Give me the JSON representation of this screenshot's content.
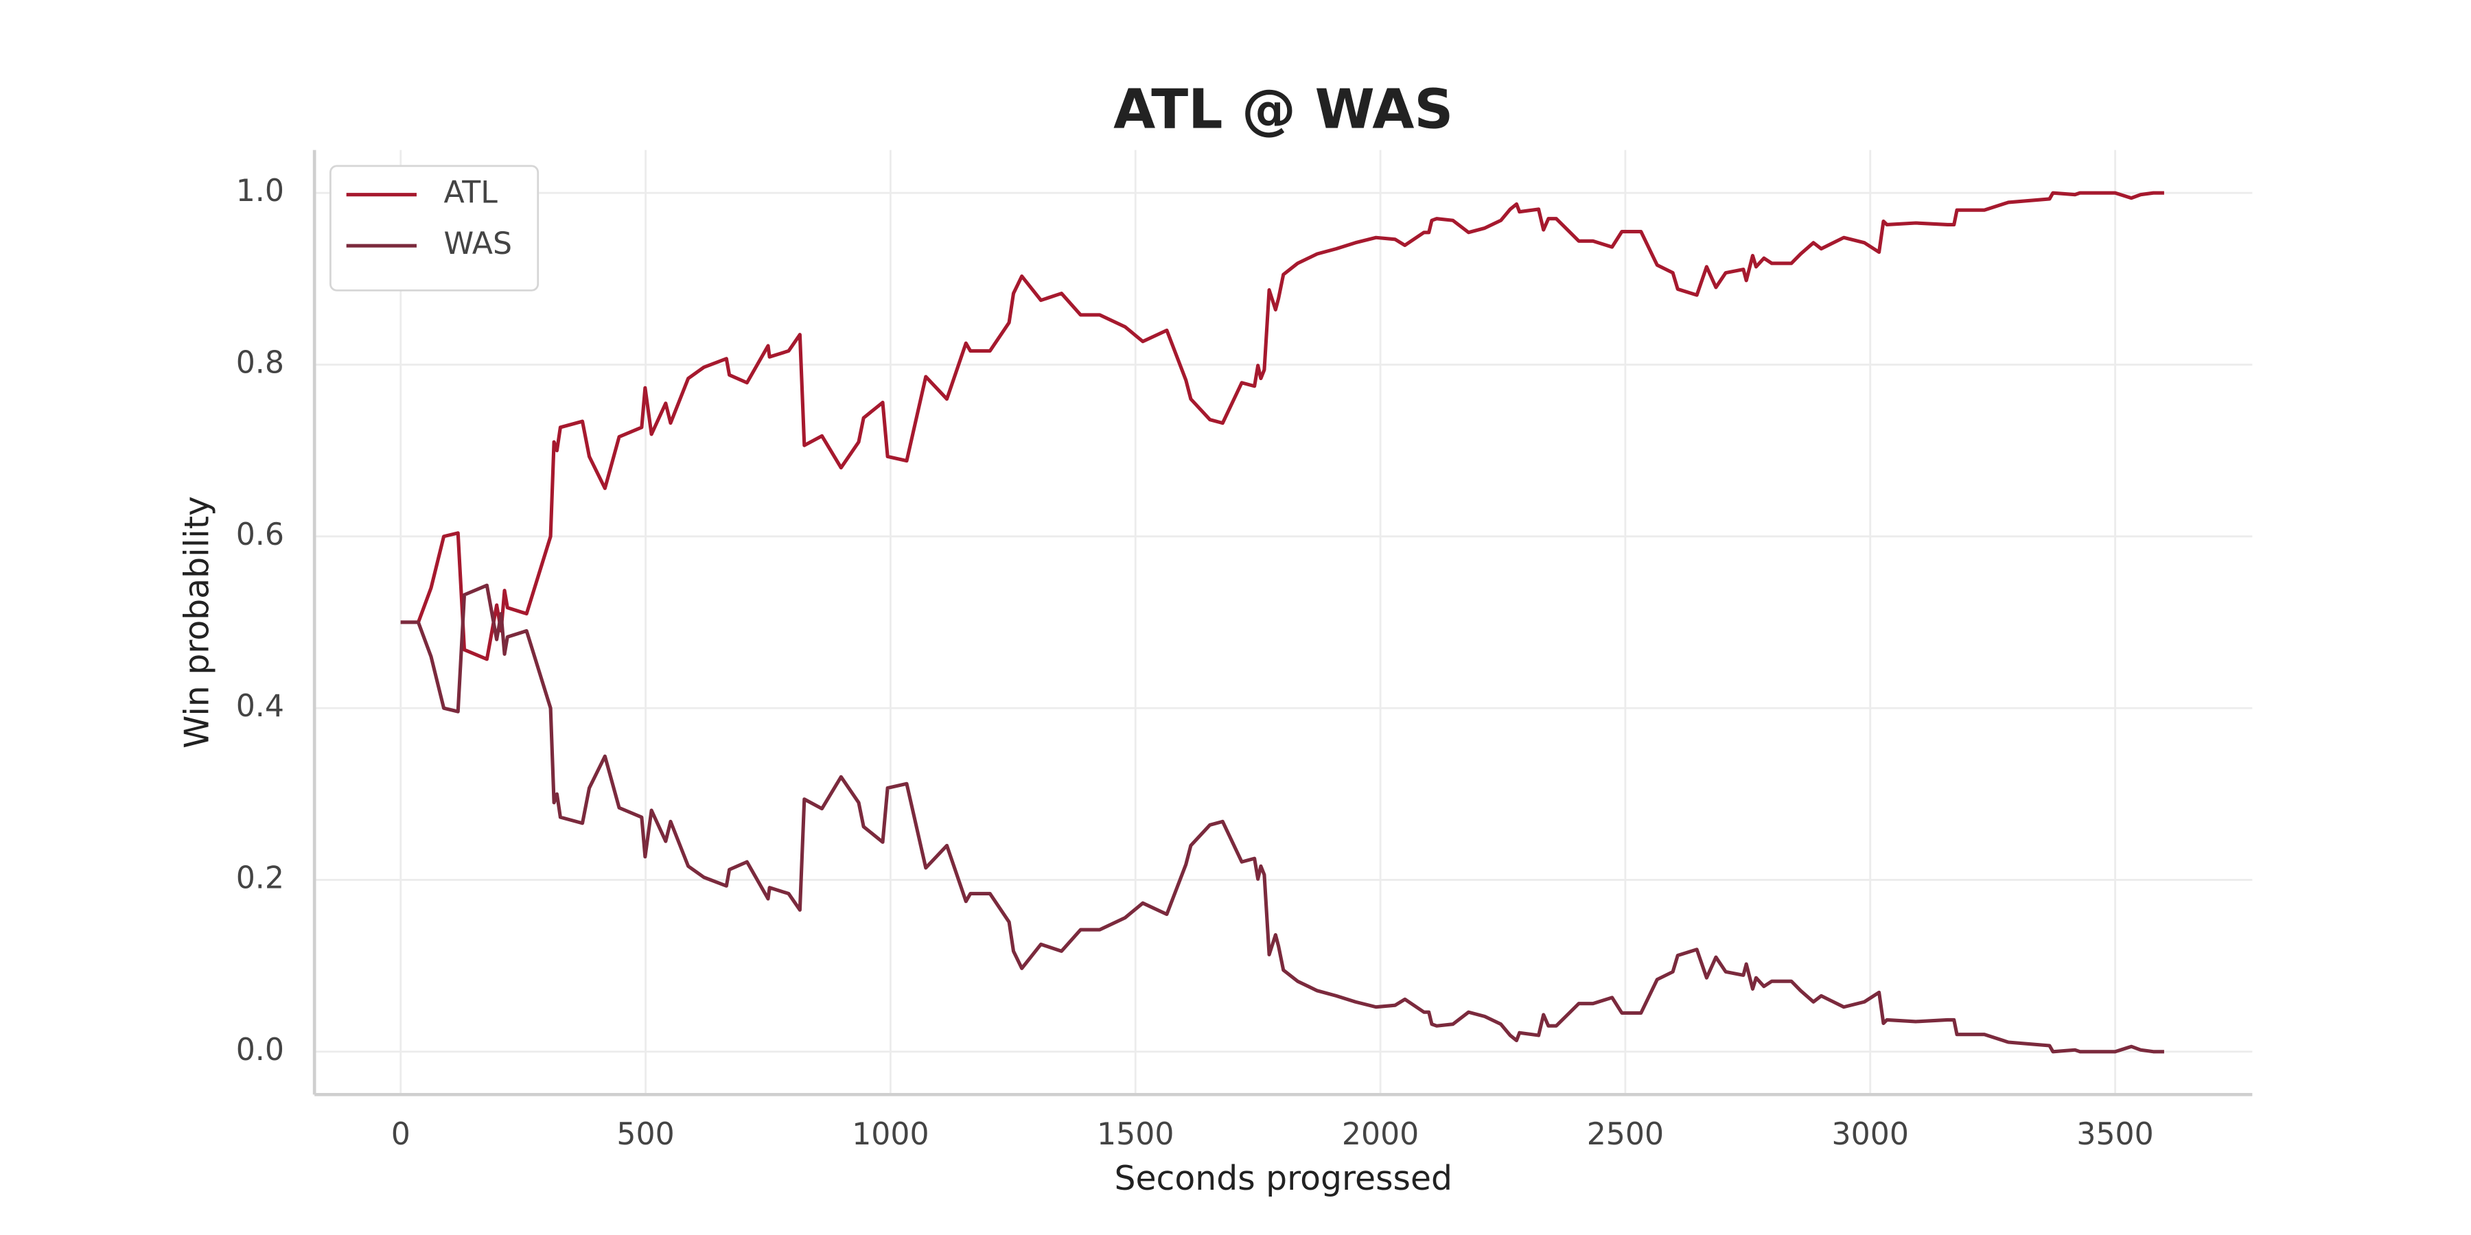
{
  "chart_data": {
    "type": "line",
    "title": "ATL @ WAS",
    "x_label": "Seconds progressed",
    "y_label": "Win probability",
    "x": [
      0,
      36,
      62,
      88,
      117,
      130,
      176,
      196,
      205,
      212,
      218,
      257,
      306,
      313,
      319,
      326,
      371,
      385,
      417,
      446,
      492,
      499,
      512,
      541,
      551,
      587,
      619,
      665,
      671,
      707,
      750,
      753,
      792,
      815,
      824,
      860,
      899,
      935,
      945,
      984,
      994,
      1033,
      1072,
      1115,
      1154,
      1163,
      1203,
      1242,
      1251,
      1268,
      1307,
      1349,
      1388,
      1427,
      1479,
      1515,
      1564,
      1603,
      1613,
      1652,
      1678,
      1717,
      1743,
      1750,
      1756,
      1763,
      1773,
      1786,
      1792,
      1802,
      1831,
      1871,
      1910,
      1949,
      1991,
      2030,
      2050,
      2089,
      2099,
      2105,
      2115,
      2148,
      2180,
      2213,
      2246,
      2265,
      2278,
      2284,
      2323,
      2333,
      2343,
      2359,
      2405,
      2434,
      2473,
      2493,
      2532,
      2565,
      2597,
      2607,
      2646,
      2666,
      2685,
      2705,
      2741,
      2747,
      2760,
      2767,
      2783,
      2799,
      2839,
      2858,
      2884,
      2900,
      2946,
      2988,
      3018,
      3027,
      3034,
      3093,
      3158,
      3171,
      3177,
      3233,
      3282,
      3366,
      3373,
      3418,
      3428,
      3500,
      3533,
      3552,
      3578,
      3600
    ],
    "series": [
      {
        "name": "ATL",
        "color": "#a6192e",
        "values": [
          0.5,
          0.5,
          0.54,
          0.6,
          0.604,
          0.468,
          0.457,
          0.52,
          0.49,
          0.537,
          0.517,
          0.51,
          0.6,
          0.71,
          0.7,
          0.727,
          0.734,
          0.693,
          0.656,
          0.716,
          0.727,
          0.773,
          0.719,
          0.755,
          0.732,
          0.784,
          0.797,
          0.807,
          0.788,
          0.779,
          0.822,
          0.809,
          0.816,
          0.835,
          0.706,
          0.717,
          0.68,
          0.71,
          0.738,
          0.756,
          0.693,
          0.688,
          0.786,
          0.76,
          0.825,
          0.816,
          0.816,
          0.849,
          0.883,
          0.903,
          0.875,
          0.883,
          0.858,
          0.858,
          0.844,
          0.827,
          0.84,
          0.782,
          0.76,
          0.736,
          0.732,
          0.779,
          0.775,
          0.799,
          0.784,
          0.794,
          0.887,
          0.864,
          0.877,
          0.905,
          0.918,
          0.929,
          0.935,
          0.942,
          0.948,
          0.946,
          0.939,
          0.954,
          0.954,
          0.968,
          0.97,
          0.968,
          0.954,
          0.959,
          0.968,
          0.981,
          0.987,
          0.978,
          0.981,
          0.957,
          0.97,
          0.97,
          0.944,
          0.944,
          0.937,
          0.955,
          0.955,
          0.916,
          0.907,
          0.888,
          0.881,
          0.914,
          0.89,
          0.907,
          0.911,
          0.898,
          0.927,
          0.914,
          0.924,
          0.918,
          0.918,
          0.929,
          0.942,
          0.935,
          0.948,
          0.942,
          0.931,
          0.967,
          0.963,
          0.965,
          0.963,
          0.963,
          0.98,
          0.98,
          0.989,
          0.993,
          1.0,
          0.998,
          1.0,
          1.0,
          0.994,
          0.998,
          1.0,
          1.0
        ]
      },
      {
        "name": "WAS",
        "color": "#7b2a3d",
        "values": [
          0.5,
          0.5,
          0.46,
          0.4,
          0.396,
          0.532,
          0.543,
          0.48,
          0.51,
          0.463,
          0.483,
          0.49,
          0.4,
          0.29,
          0.3,
          0.273,
          0.266,
          0.307,
          0.344,
          0.284,
          0.273,
          0.227,
          0.281,
          0.245,
          0.268,
          0.216,
          0.203,
          0.193,
          0.212,
          0.221,
          0.178,
          0.191,
          0.184,
          0.165,
          0.294,
          0.283,
          0.32,
          0.29,
          0.262,
          0.244,
          0.307,
          0.312,
          0.214,
          0.24,
          0.175,
          0.184,
          0.184,
          0.151,
          0.117,
          0.097,
          0.125,
          0.117,
          0.142,
          0.142,
          0.156,
          0.173,
          0.16,
          0.218,
          0.24,
          0.264,
          0.268,
          0.221,
          0.225,
          0.201,
          0.216,
          0.206,
          0.113,
          0.136,
          0.123,
          0.095,
          0.082,
          0.071,
          0.065,
          0.058,
          0.052,
          0.054,
          0.061,
          0.046,
          0.046,
          0.032,
          0.03,
          0.032,
          0.046,
          0.041,
          0.032,
          0.019,
          0.013,
          0.022,
          0.019,
          0.043,
          0.03,
          0.03,
          0.056,
          0.056,
          0.063,
          0.045,
          0.045,
          0.084,
          0.093,
          0.112,
          0.119,
          0.086,
          0.11,
          0.093,
          0.089,
          0.102,
          0.073,
          0.086,
          0.076,
          0.082,
          0.082,
          0.071,
          0.058,
          0.065,
          0.052,
          0.058,
          0.069,
          0.033,
          0.037,
          0.035,
          0.037,
          0.037,
          0.02,
          0.02,
          0.011,
          0.007,
          0,
          0.002,
          0,
          0,
          0.006,
          0.002,
          0,
          0
        ]
      }
    ],
    "xlim": [
      -176,
      3780
    ],
    "ylim": [
      -0.05,
      1.05
    ],
    "xticks": [
      0,
      500,
      1000,
      1500,
      2000,
      2500,
      3000,
      3500
    ],
    "yticks": [
      {
        "value": 0,
        "label": "0.0"
      },
      0.2,
      0.4,
      0.6,
      0.8,
      {
        "value": 1,
        "label": "1.0"
      }
    ],
    "grid": true,
    "legend": "upper left"
  }
}
